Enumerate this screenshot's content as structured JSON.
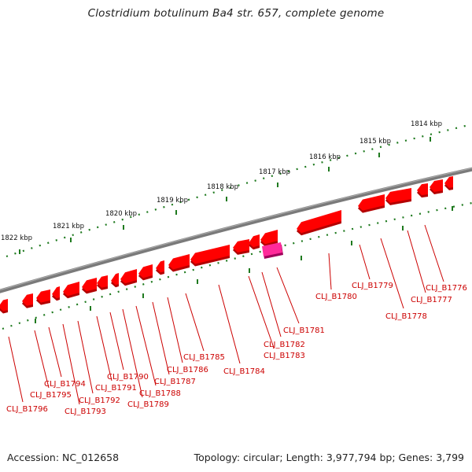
{
  "title": "Clostridium botulinum Ba4 str. 657, complete genome",
  "accession_text": "Accession: NC_012658",
  "topology_text": "Topology: circular; Length: 3,977,794 bp; Genes: 3,799",
  "colors": {
    "backbone": "#7a7a7a",
    "tick": "#1f7a1f",
    "gene": "#ff0000",
    "gene_shadow": "#b30000",
    "highlight_gene": "#ff2a9a",
    "highlight_shadow": "#a0005a",
    "label": "#cc0000",
    "leader": "#cc0000"
  },
  "scale_labels": [
    "1814 kbp",
    "1815 kbp",
    "1816 kbp",
    "1817 kbp",
    "1818 kbp",
    "1819 kbp",
    "1820 kbp",
    "1821 kbp",
    "1822 kbp"
  ],
  "genes": [
    {
      "label": "CLJ_B1776"
    },
    {
      "label": "CLJ_B1777"
    },
    {
      "label": "CLJ_B1778"
    },
    {
      "label": "CLJ_B1779"
    },
    {
      "label": "CLJ_B1780"
    },
    {
      "label": "CLJ_B1781"
    },
    {
      "label": "CLJ_B1782"
    },
    {
      "label": "CLJ_B1783"
    },
    {
      "label": "CLJ_B1784"
    },
    {
      "label": "CLJ_B1785"
    },
    {
      "label": "CLJ_B1786"
    },
    {
      "label": "CLJ_B1787"
    },
    {
      "label": "CLJ_B1788"
    },
    {
      "label": "CLJ_B1789"
    },
    {
      "label": "CLJ_B1790"
    },
    {
      "label": "CLJ_B1791"
    },
    {
      "label": "CLJ_B1792"
    },
    {
      "label": "CLJ_B1793"
    },
    {
      "label": "CLJ_B1794"
    },
    {
      "label": "CLJ_B1795"
    },
    {
      "label": "CLJ_B1796"
    }
  ]
}
